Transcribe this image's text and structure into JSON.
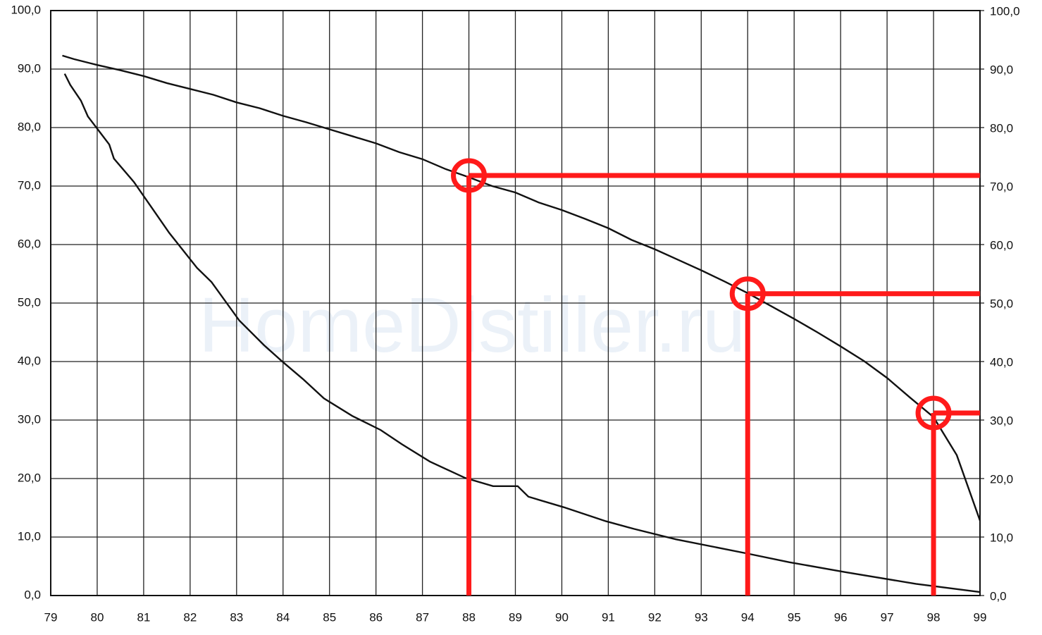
{
  "chart_data": {
    "type": "line",
    "watermark": "HomeDistiller.ru",
    "xlim": [
      79,
      99
    ],
    "xticks": [
      79,
      80,
      81,
      82,
      83,
      84,
      85,
      86,
      87,
      88,
      89,
      90,
      91,
      92,
      93,
      94,
      95,
      96,
      97,
      98,
      99
    ],
    "ylim": [
      0,
      100
    ],
    "yticks": [
      {
        "value": 0,
        "label": "0,0"
      },
      {
        "value": 10,
        "label": "10,0"
      },
      {
        "value": 20,
        "label": "20,0"
      },
      {
        "value": 30,
        "label": "30,0"
      },
      {
        "value": 40,
        "label": "40,0"
      },
      {
        "value": 50,
        "label": "50,0"
      },
      {
        "value": 60,
        "label": "60,0"
      },
      {
        "value": 70,
        "label": "70,0"
      },
      {
        "value": 80,
        "label": "80,0"
      },
      {
        "value": 90,
        "label": "90,0"
      },
      {
        "value": 100,
        "label": "100,0"
      }
    ],
    "y2lim": [
      0,
      100
    ],
    "y2ticks": [
      {
        "value": 0,
        "label": "0,0"
      },
      {
        "value": 10,
        "label": "10,0"
      },
      {
        "value": 20,
        "label": "20,0"
      },
      {
        "value": 30,
        "label": "30,0"
      },
      {
        "value": 40,
        "label": "40,0"
      },
      {
        "value": 50,
        "label": "50,0"
      },
      {
        "value": 60,
        "label": "60,0"
      },
      {
        "value": 70,
        "label": "70,0"
      },
      {
        "value": 80,
        "label": "80,0"
      },
      {
        "value": 90,
        "label": "90,0"
      },
      {
        "value": 100,
        "label": "100,0"
      }
    ],
    "grid": true,
    "series": [
      {
        "color": "#111111",
        "x": [
          79.25,
          79.5,
          80,
          80.5,
          81,
          81.5,
          82,
          82.5,
          83,
          83.5,
          84,
          84.5,
          85,
          85.5,
          86,
          86.5,
          87,
          87.5,
          88,
          88.5,
          89,
          89.5,
          90,
          90.5,
          91,
          91.5,
          92,
          92.5,
          93,
          93.5,
          94,
          94.5,
          95,
          95.5,
          96,
          96.5,
          97,
          97.5,
          98,
          98.5,
          99
        ],
        "values": [
          92.3,
          91.7,
          90.7,
          89.8,
          88.8,
          87.6,
          86.6,
          85.6,
          84.3,
          83.3,
          82,
          80.9,
          79.7,
          78.5,
          77.3,
          75.8,
          74.6,
          72.9,
          71.5,
          70,
          68.9,
          67.2,
          65.9,
          64.4,
          62.8,
          60.8,
          59.2,
          57.4,
          55.6,
          53.7,
          51.7,
          49.5,
          47.3,
          45,
          42.6,
          40.1,
          37.2,
          33.8,
          30.5,
          24,
          12.8
        ]
      },
      {
        "color": "#111111",
        "x": [
          79.3,
          79.42,
          79.65,
          79.8,
          80.03,
          80.26,
          80.36,
          80.79,
          81.21,
          81.55,
          82.15,
          82.46,
          83.06,
          83.59,
          83.97,
          84.43,
          84.88,
          85.49,
          86.1,
          86.55,
          87.16,
          87.92,
          88.52,
          89.05,
          89.28,
          90.04,
          90.95,
          91.55,
          92.46,
          93.98,
          94.89,
          96.1,
          97.62,
          99
        ],
        "values": [
          89.2,
          87.3,
          84.6,
          81.9,
          79.5,
          77.1,
          74.7,
          70.7,
          65.9,
          62,
          56,
          53.6,
          47,
          42.8,
          40.1,
          37,
          33.7,
          30.7,
          28.3,
          25.9,
          22.9,
          20.1,
          18.7,
          18.7,
          16.9,
          15.1,
          12.7,
          11.4,
          9.6,
          7.2,
          5.7,
          4,
          2,
          0.6
        ]
      }
    ],
    "annotation_color": "#ff1a1a",
    "annotations": [
      {
        "x": 88,
        "y": 71.8
      },
      {
        "x": 94,
        "y": 51.6
      },
      {
        "x": 98,
        "y": 31.2
      }
    ]
  }
}
